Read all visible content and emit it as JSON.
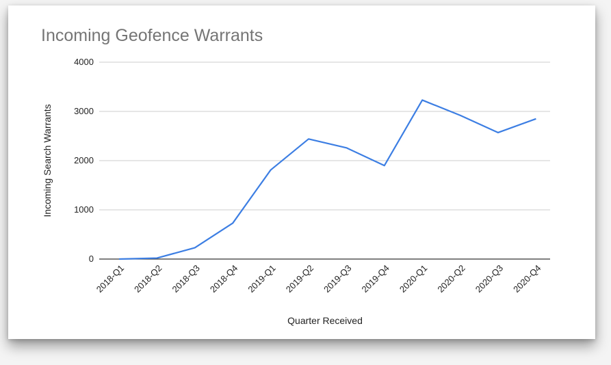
{
  "chart_data": {
    "type": "line",
    "title": "Incoming Geofence Warrants",
    "xlabel": "Quarter Received",
    "ylabel": "Incoming Search Warrants",
    "ylim": [
      0,
      4000
    ],
    "yticks": [
      "0",
      "1000",
      "2000",
      "3000",
      "4000"
    ],
    "categories": [
      "2018-Q1",
      "2018-Q2",
      "2018-Q3",
      "2018-Q4",
      "2019-Q1",
      "2019-Q2",
      "2019-Q3",
      "2019-Q4",
      "2020-Q1",
      "2020-Q2",
      "2020-Q3",
      "2020-Q4"
    ],
    "series": [
      {
        "values": [
          0,
          20,
          230,
          730,
          1810,
          2440,
          2260,
          1900,
          3230,
          2920,
          2570,
          2850
        ]
      }
    ],
    "grid": true,
    "line_color": "#3c7ee3"
  }
}
